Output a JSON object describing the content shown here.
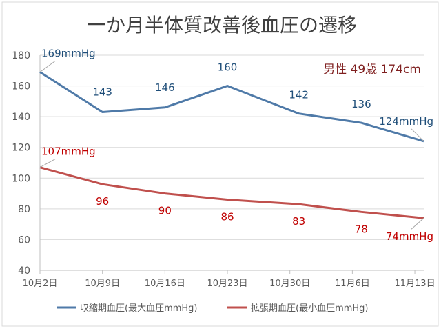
{
  "chart_data": {
    "type": "line",
    "title": "一か月半体質改善後血圧の遷移",
    "annotation": "男性 49歳 174cm",
    "categories": [
      "10月2日",
      "10月9日",
      "10月16日",
      "10月23日",
      "10月30日",
      "11月6日",
      "11月13日"
    ],
    "x_positions": [
      0,
      7,
      14,
      21,
      28,
      35,
      42
    ],
    "ylim": [
      40,
      180
    ],
    "yticks": [
      40,
      60,
      80,
      100,
      120,
      140,
      160,
      180
    ],
    "grid": true,
    "legend_position": "bottom",
    "series": [
      {
        "name": "収縮期血圧(最大血圧mmHg)",
        "color": "#4f7aa8",
        "label_color": "#1f4e79",
        "x": [
          0,
          7,
          14,
          21,
          29,
          36,
          43
        ],
        "values": [
          169,
          143,
          146,
          160,
          142,
          136,
          124
        ],
        "labels": [
          "169mmHg",
          "143",
          "146",
          "160",
          "142",
          "136",
          "124mmHg"
        ]
      },
      {
        "name": "拡張期血圧(最小血圧mmHg)",
        "color": "#c0504d",
        "label_color": "#c00000",
        "x": [
          0,
          7,
          14,
          21,
          29,
          36,
          43
        ],
        "values": [
          107,
          96,
          90,
          86,
          83,
          78,
          74
        ],
        "labels": [
          "107mmHg",
          "96",
          "90",
          "86",
          "83",
          "78",
          "74mmHg"
        ]
      }
    ]
  }
}
